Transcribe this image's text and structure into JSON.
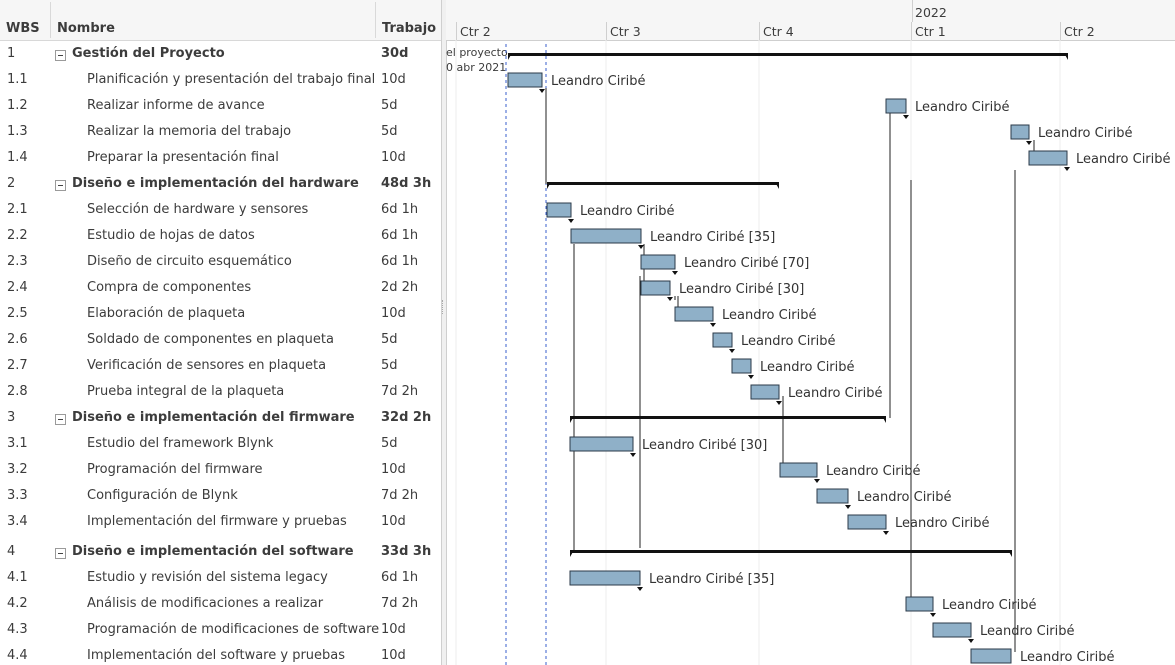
{
  "table": {
    "headers": {
      "wbs": "WBS",
      "name": "Nombre",
      "work": "Trabajo"
    },
    "rows": [
      {
        "wbs": "1",
        "name": "Gestión del Proyecto",
        "work": "30d",
        "summary": true
      },
      {
        "wbs": "1.1",
        "name": "Planificación y presentación del trabajo final",
        "work": "10d",
        "summary": false
      },
      {
        "wbs": "1.2",
        "name": "Realizar informe de avance",
        "work": "5d",
        "summary": false
      },
      {
        "wbs": "1.3",
        "name": "Realizar la memoria del trabajo",
        "work": "5d",
        "summary": false
      },
      {
        "wbs": "1.4",
        "name": "Preparar la presentación final",
        "work": "10d",
        "summary": false
      },
      {
        "wbs": "2",
        "name": "Diseño e implementación del hardware",
        "work": "48d 3h",
        "summary": true
      },
      {
        "wbs": "2.1",
        "name": "Selección de hardware y sensores",
        "work": "6d 1h",
        "summary": false
      },
      {
        "wbs": "2.2",
        "name": "Estudio de hojas de datos",
        "work": "6d 1h",
        "summary": false
      },
      {
        "wbs": "2.3",
        "name": "Diseño de circuito esquemático",
        "work": "6d 1h",
        "summary": false
      },
      {
        "wbs": "2.4",
        "name": "Compra de componentes",
        "work": "2d 2h",
        "summary": false
      },
      {
        "wbs": "2.5",
        "name": "Elaboración de plaqueta",
        "work": "10d",
        "summary": false
      },
      {
        "wbs": "2.6",
        "name": "Soldado de componentes en plaqueta",
        "work": "5d",
        "summary": false
      },
      {
        "wbs": "2.7",
        "name": "Verificación de sensores en plaqueta",
        "work": "5d",
        "summary": false
      },
      {
        "wbs": "2.8",
        "name": "Prueba integral de la plaqueta",
        "work": "7d 2h",
        "summary": false
      },
      {
        "wbs": "3",
        "name": "Diseño e implementación del firmware",
        "work": "32d 2h",
        "summary": true
      },
      {
        "wbs": "3.1",
        "name": "Estudio del framework Blynk",
        "work": "5d",
        "summary": false
      },
      {
        "wbs": "3.2",
        "name": "Programación del firmware",
        "work": "10d",
        "summary": false
      },
      {
        "wbs": "3.3",
        "name": "Configuración de Blynk",
        "work": "7d 2h",
        "summary": false
      },
      {
        "wbs": "3.4",
        "name": "Implementación del firmware y pruebas",
        "work": "10d",
        "summary": false
      },
      {
        "wbs": "4",
        "name": "Diseño e implementación del software",
        "work": "33d 3h",
        "summary": true
      },
      {
        "wbs": "4.1",
        "name": "Estudio y revisión del sistema legacy",
        "work": "6d 1h",
        "summary": false
      },
      {
        "wbs": "4.2",
        "name": "Análisis de modificaciones a realizar",
        "work": "7d 2h",
        "summary": false
      },
      {
        "wbs": "4.3",
        "name": "Programación de modificaciones de software",
        "work": "10d",
        "summary": false
      },
      {
        "wbs": "4.4",
        "name": "Implementación del software y pruebas",
        "work": "10d",
        "summary": false
      }
    ]
  },
  "timeline": {
    "year_label": "2022",
    "quarters": [
      "Ctr 2",
      "Ctr 3",
      "Ctr 4",
      "Ctr 1",
      "Ctr 2"
    ],
    "project_label_line1": "el proyecto",
    "project_label_line2": "0 abr 2021"
  },
  "gantt": {
    "tasks": [
      {
        "label": ""
      },
      {
        "label": "Leandro Ciribé"
      },
      {
        "label": "Leandro Ciribé"
      },
      {
        "label": "Leandro Ciribé"
      },
      {
        "label": "Leandro Ciribé"
      },
      {
        "label": ""
      },
      {
        "label": "Leandro Ciribé"
      },
      {
        "label": "Leandro Ciribé [35]"
      },
      {
        "label": "Leandro Ciribé [70]"
      },
      {
        "label": "Leandro Ciribé [30]"
      },
      {
        "label": "Leandro Ciribé"
      },
      {
        "label": "Leandro Ciribé"
      },
      {
        "label": "Leandro Ciribé"
      },
      {
        "label": "Leandro Ciribé"
      },
      {
        "label": ""
      },
      {
        "label": "Leandro Ciribé [30]"
      },
      {
        "label": "Leandro Ciribé"
      },
      {
        "label": "Leandro Ciribé"
      },
      {
        "label": "Leandro Ciribé"
      },
      {
        "label": ""
      },
      {
        "label": "Leandro Ciribé [35]"
      },
      {
        "label": "Leandro Ciribé"
      },
      {
        "label": "Leandro Ciribé"
      },
      {
        "label": "Leandro Ciribé"
      }
    ]
  },
  "colors": {
    "bar_fill": "#8fb0c8",
    "bar_stroke": "#2b3a48",
    "today_line": "#3a5fcd"
  }
}
